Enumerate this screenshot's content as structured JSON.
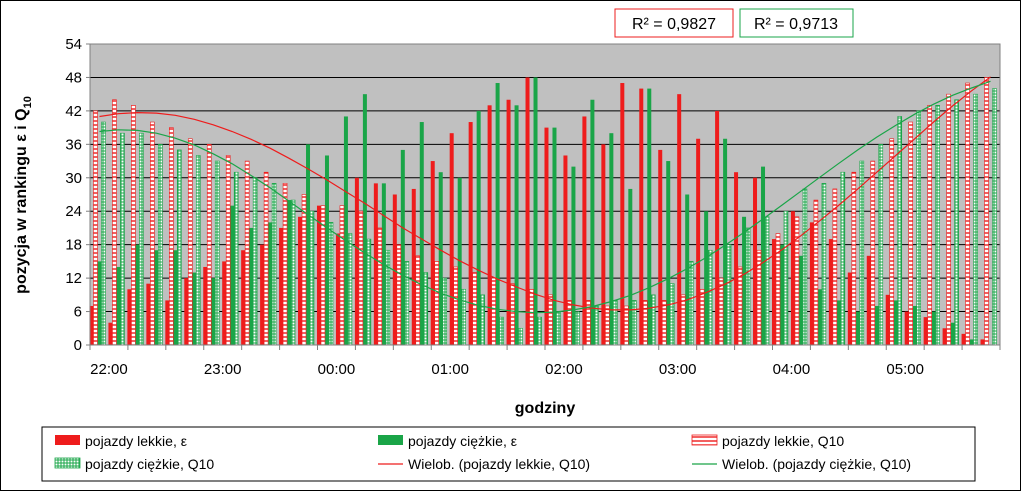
{
  "chart_data": {
    "type": "bar",
    "title": "",
    "xlabel": "godziny",
    "ylabel": "pozycja w rankingu ε i Q",
    "ylabel_sub": "10",
    "ylim": [
      0,
      54
    ],
    "yticks": [
      "0",
      "6",
      "12",
      "18",
      "24",
      "30",
      "36",
      "42",
      "48",
      "54"
    ],
    "xtick_labels": [
      "22:00",
      "23:00",
      "00:00",
      "01:00",
      "02:00",
      "03:00",
      "04:00",
      "05:00"
    ],
    "grid": "horizontal",
    "legend_placement": "bottom",
    "r2_red": "R² = 0,9827",
    "r2_green": "R² = 0,9713",
    "series": [
      {
        "name": "pojazdy lekkie, ε",
        "color": "#ee1c1c",
        "style": "solid",
        "values": [
          7,
          4,
          10,
          11,
          8,
          12,
          14,
          15,
          17,
          18,
          21,
          23,
          25,
          20,
          30,
          29,
          27,
          28,
          33,
          38,
          40,
          43,
          44,
          48,
          39,
          34,
          41,
          36,
          47,
          46,
          35,
          45,
          37,
          42,
          31,
          30,
          19,
          24,
          22,
          19,
          13,
          16,
          9,
          6,
          5,
          3,
          2,
          1
        ]
      },
      {
        "name": "pojazdy ciężkie, ε",
        "color": "#1aa548",
        "style": "solid",
        "values": [
          15,
          14,
          18,
          17,
          17,
          13,
          12,
          25,
          21,
          22,
          26,
          36,
          34,
          41,
          45,
          29,
          35,
          40,
          31,
          30,
          42,
          47,
          43,
          48,
          39,
          32,
          44,
          38,
          28,
          46,
          33,
          27,
          24,
          37,
          23,
          32,
          18,
          16,
          10,
          8,
          6,
          7,
          8,
          7,
          6,
          4,
          1,
          0
        ]
      },
      {
        "name": "pojazdy lekkie, Q10",
        "color": "#ee1c1c",
        "style": "hatch",
        "values": [
          42,
          44,
          43,
          40,
          39,
          37,
          36,
          34,
          33,
          31,
          29,
          27,
          25,
          25,
          24,
          21,
          18,
          16,
          15,
          14,
          13,
          12,
          11,
          10,
          9,
          8,
          8,
          7,
          7,
          8,
          8,
          9,
          10,
          12,
          14,
          17,
          20,
          23,
          26,
          28,
          31,
          33,
          37,
          40,
          43,
          45,
          47,
          48
        ]
      },
      {
        "name": "pojazdy ciężkie, Q10",
        "color": "#1aa548",
        "style": "hatch",
        "values": [
          40,
          38,
          38,
          36,
          35,
          34,
          33,
          31,
          30,
          29,
          26,
          24,
          22,
          20,
          19,
          17,
          15,
          13,
          12,
          10,
          9,
          5,
          3,
          5,
          6,
          6,
          7,
          8,
          8,
          9,
          11,
          15,
          17,
          18,
          21,
          23,
          24,
          28,
          29,
          31,
          33,
          36,
          41,
          42,
          43,
          44,
          45,
          46
        ]
      },
      {
        "name": "Wielob. (pojazdy lekkie, Q10)",
        "color": "#ee1c1c",
        "style": "line",
        "values": [
          41.0,
          41.5,
          41.7,
          41.6,
          41.2,
          40.5,
          39.5,
          38.3,
          36.9,
          35.3,
          33.5,
          31.6,
          29.6,
          27.5,
          25.4,
          23.2,
          21.0,
          19.0,
          17.0,
          15.1,
          13.4,
          11.8,
          10.4,
          9.1,
          8.0,
          7.2,
          6.6,
          6.3,
          6.3,
          6.6,
          7.2,
          8.1,
          9.4,
          10.9,
          12.7,
          14.8,
          17.1,
          19.6,
          22.3,
          25.1,
          28.0,
          31.0,
          34.0,
          37.0,
          40.0,
          42.9,
          45.6,
          48.1
        ]
      },
      {
        "name": "Wielob. (pojazdy ciężkie, Q10)",
        "color": "#1aa548",
        "style": "line",
        "values": [
          38.3,
          38.6,
          38.5,
          38.0,
          37.1,
          35.9,
          34.3,
          32.5,
          30.4,
          28.2,
          25.8,
          23.4,
          21.0,
          18.7,
          16.5,
          14.4,
          12.5,
          10.8,
          9.3,
          8.1,
          7.1,
          6.4,
          6.0,
          5.8,
          5.9,
          6.3,
          6.9,
          7.8,
          8.9,
          10.3,
          11.9,
          13.7,
          15.7,
          17.9,
          20.2,
          22.6,
          25.1,
          27.6,
          30.1,
          32.6,
          35.0,
          37.3,
          39.4,
          41.4,
          43.2,
          44.8,
          46.1,
          47.3
        ]
      }
    ]
  }
}
